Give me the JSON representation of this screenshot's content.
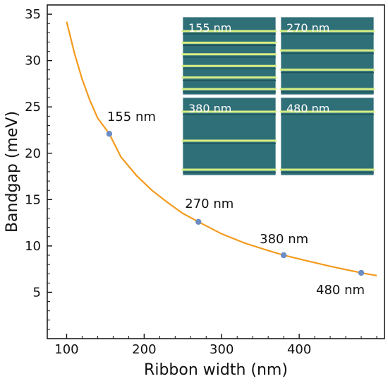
{
  "chart_data": {
    "type": "line",
    "title": "",
    "xlabel": "Ribbon width (nm)",
    "ylabel": "Bandgap (meV)",
    "xlim": [
      75,
      510
    ],
    "ylim": [
      0,
      36
    ],
    "xticks": [
      100,
      200,
      300,
      400
    ],
    "yticks": [
      5,
      10,
      15,
      20,
      25,
      30,
      35
    ],
    "grid": false,
    "series": [
      {
        "name": "",
        "color": "#f39a1e",
        "style": "curve",
        "x": [
          100,
          110,
          120,
          130,
          140,
          155,
          170,
          190,
          210,
          230,
          250,
          270,
          300,
          330,
          360,
          380,
          410,
          440,
          480,
          500
        ],
        "y": [
          34.2,
          30.8,
          28.0,
          25.7,
          23.8,
          22.1,
          19.6,
          17.6,
          16.0,
          14.7,
          13.5,
          12.6,
          11.3,
          10.3,
          9.5,
          9.0,
          8.4,
          7.8,
          7.1,
          6.8
        ]
      },
      {
        "name": "",
        "color": "#6b8cc4",
        "style": "points",
        "x": [
          155,
          270,
          380,
          480
        ],
        "y": [
          22.1,
          12.6,
          9.0,
          7.1
        ],
        "labels": [
          "155 nm",
          "270 nm",
          "380 nm",
          "480 nm"
        ]
      }
    ],
    "insets": [
      {
        "label": "155 nm",
        "stripes": 6
      },
      {
        "label": "270 nm",
        "stripes": 4
      },
      {
        "label": "380 nm",
        "stripes": 3
      },
      {
        "label": "480 nm",
        "stripes": 2
      }
    ]
  }
}
